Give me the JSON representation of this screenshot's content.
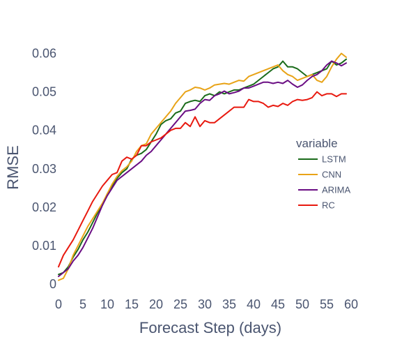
{
  "chart_data": {
    "type": "line",
    "title": "",
    "xlabel": "Forecast Step (days)",
    "ylabel": "RMSE",
    "xlim": [
      0,
      60
    ],
    "ylim": [
      0,
      0.065
    ],
    "x_ticks": [
      0,
      5,
      10,
      15,
      20,
      25,
      30,
      35,
      40,
      45,
      50,
      55,
      60
    ],
    "x_tick_labels": [
      "0",
      "5",
      "10",
      "15",
      "20",
      "25",
      "30",
      "35",
      "40",
      "45",
      "50",
      "55",
      "60"
    ],
    "y_ticks": [
      0,
      0.01,
      0.02,
      0.03,
      0.04,
      0.05,
      0.06
    ],
    "y_tick_labels": [
      "0",
      "0.01",
      "0.02",
      "0.03",
      "0.04",
      "0.05",
      "0.06"
    ],
    "grid": false,
    "legend": {
      "title": "variable",
      "placement": "center-right"
    },
    "x": [
      0,
      1,
      2,
      3,
      4,
      5,
      6,
      7,
      8,
      9,
      10,
      11,
      12,
      13,
      14,
      15,
      16,
      17,
      18,
      19,
      20,
      21,
      22,
      23,
      24,
      25,
      26,
      27,
      28,
      29,
      30,
      31,
      32,
      33,
      34,
      35,
      36,
      37,
      38,
      39,
      40,
      41,
      42,
      43,
      44,
      45,
      46,
      47,
      48,
      49,
      50,
      51,
      52,
      53,
      54,
      55,
      56,
      57,
      58,
      59
    ],
    "series": [
      {
        "name": "LSTM",
        "color": "#1a6b1a",
        "values": [
          0.0025,
          0.003,
          0.0045,
          0.007,
          0.009,
          0.0115,
          0.0135,
          0.016,
          0.0185,
          0.0205,
          0.0235,
          0.0255,
          0.0275,
          0.029,
          0.03,
          0.0325,
          0.0335,
          0.034,
          0.035,
          0.037,
          0.039,
          0.0415,
          0.0425,
          0.043,
          0.0445,
          0.045,
          0.047,
          0.0475,
          0.0478,
          0.0475,
          0.049,
          0.0495,
          0.049,
          0.05,
          0.0495,
          0.05,
          0.0505,
          0.0505,
          0.051,
          0.0515,
          0.052,
          0.053,
          0.054,
          0.055,
          0.056,
          0.0565,
          0.058,
          0.0565,
          0.0565,
          0.056,
          0.055,
          0.054,
          0.0545,
          0.055,
          0.0555,
          0.056,
          0.058,
          0.057,
          0.0575,
          0.0585
        ]
      },
      {
        "name": "CNN",
        "color": "#e8a317",
        "values": [
          0.001,
          0.0015,
          0.004,
          0.0075,
          0.01,
          0.0125,
          0.015,
          0.017,
          0.019,
          0.021,
          0.0235,
          0.026,
          0.028,
          0.0295,
          0.0305,
          0.032,
          0.0345,
          0.036,
          0.0365,
          0.039,
          0.0405,
          0.042,
          0.0435,
          0.045,
          0.047,
          0.0485,
          0.05,
          0.0505,
          0.0512,
          0.051,
          0.0505,
          0.051,
          0.0518,
          0.052,
          0.0522,
          0.052,
          0.0525,
          0.053,
          0.0528,
          0.054,
          0.0545,
          0.055,
          0.0555,
          0.056,
          0.0565,
          0.057,
          0.0555,
          0.0545,
          0.054,
          0.053,
          0.0535,
          0.054,
          0.0545,
          0.053,
          0.0525,
          0.054,
          0.0565,
          0.0585,
          0.06,
          0.059
        ]
      },
      {
        "name": "ARIMA",
        "color": "#6a0d83",
        "values": [
          0.002,
          0.003,
          0.004,
          0.006,
          0.0075,
          0.0095,
          0.012,
          0.0145,
          0.0175,
          0.0205,
          0.023,
          0.025,
          0.027,
          0.028,
          0.029,
          0.03,
          0.031,
          0.032,
          0.0335,
          0.0345,
          0.036,
          0.0375,
          0.039,
          0.0405,
          0.042,
          0.0435,
          0.045,
          0.0452,
          0.0455,
          0.047,
          0.048,
          0.0478,
          0.049,
          0.0495,
          0.0502,
          0.0495,
          0.0498,
          0.0502,
          0.051,
          0.051,
          0.0515,
          0.052,
          0.0525,
          0.0525,
          0.0522,
          0.0525,
          0.0522,
          0.053,
          0.052,
          0.0512,
          0.0518,
          0.053,
          0.054,
          0.0545,
          0.0555,
          0.057,
          0.058,
          0.0575,
          0.0568,
          0.0575
        ]
      },
      {
        "name": "RC",
        "color": "#e8190f",
        "values": [
          0.0045,
          0.0075,
          0.0095,
          0.0115,
          0.014,
          0.0165,
          0.019,
          0.0215,
          0.0235,
          0.0255,
          0.027,
          0.0285,
          0.029,
          0.032,
          0.033,
          0.0325,
          0.0335,
          0.036,
          0.036,
          0.037,
          0.0375,
          0.038,
          0.039,
          0.04,
          0.0405,
          0.0405,
          0.042,
          0.041,
          0.0435,
          0.041,
          0.0425,
          0.042,
          0.042,
          0.043,
          0.044,
          0.045,
          0.046,
          0.046,
          0.046,
          0.048,
          0.0475,
          0.0475,
          0.047,
          0.046,
          0.0465,
          0.0462,
          0.047,
          0.0465,
          0.0475,
          0.048,
          0.0478,
          0.048,
          0.0485,
          0.05,
          0.049,
          0.0495,
          0.0495,
          0.0488,
          0.0495,
          0.0495
        ]
      }
    ]
  }
}
